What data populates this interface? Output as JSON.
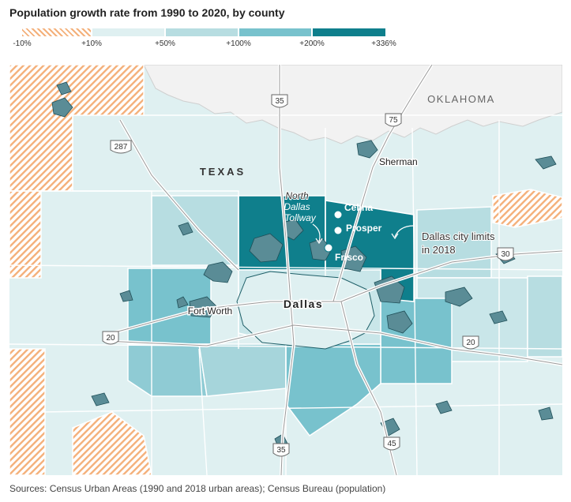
{
  "title": "Population growth rate from 1990 to 2020, by county",
  "legend": {
    "ticks": [
      "-10%",
      "+10%",
      "+50%",
      "+100%",
      "+200%",
      "+336%"
    ],
    "colors": [
      "#f4b07a",
      "#dff0f1",
      "#b7dde1",
      "#78c2cd",
      "#0f7f8c"
    ]
  },
  "map": {
    "state_labels": {
      "texas": "TEXAS",
      "oklahoma": "OKLAHOMA"
    },
    "cities": {
      "celina": "Celina",
      "prosper": "Prosper",
      "frisco": "Frisco",
      "dallas": "Dallas",
      "fort_worth": "Fort Worth",
      "sherman": "Sherman"
    },
    "annotations": {
      "tollway_line1": "North",
      "tollway_line2": "Dallas",
      "tollway_line3": "Tollway",
      "limits_line1": "Dallas city limits",
      "limits_line2": "in 2018"
    },
    "highways": {
      "i35_north": "35",
      "i35_south": "35",
      "us287": "287",
      "us75": "75",
      "i30": "30",
      "i20_west": "20",
      "i20_east": "20",
      "us45": "45"
    }
  },
  "source": "Sources: Census Urban Areas (1990 and 2018 urban areas); Census Bureau (population)"
}
